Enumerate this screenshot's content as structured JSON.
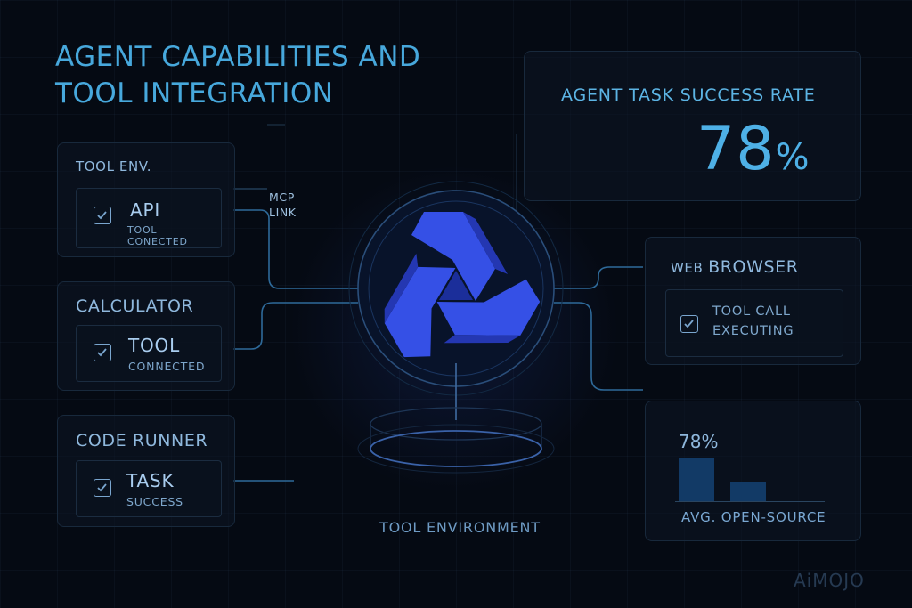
{
  "title_line1": "AGENT CAPABILITIES AND",
  "title_line2": "TOOL INTEGRATION",
  "left_panels": [
    {
      "header": "TOOL ENV.",
      "item_title": "API",
      "item_sub": "TOOL CONECTED"
    },
    {
      "header": "CALCULATOR",
      "item_title": "TOOL",
      "item_sub": "CONNECTED"
    },
    {
      "header": "CODE RUNNER",
      "item_title": "TASK",
      "item_sub": "SUCCESS"
    }
  ],
  "mcp_link": {
    "line1": "MCP",
    "line2": "LINK"
  },
  "success_rate": {
    "label": "AGENT TASK SUCCESS RATE",
    "value": "78",
    "unit": "%"
  },
  "web_browser": {
    "header_small": "WEB",
    "header_big": "BROWSER",
    "line1": "TOOL CALL",
    "line2": "EXECUTING"
  },
  "chart_data": {
    "type": "bar",
    "categories": [
      "",
      ""
    ],
    "values": [
      78,
      36
    ],
    "data_labels": [
      "78%",
      ""
    ],
    "xlabel": "AVG. OPEN-SOURCE",
    "ylim": [
      0,
      100
    ]
  },
  "environment_label": "TOOL ENVIRONMENT",
  "brand": "AiMOJO",
  "icons": [
    "checkbox-checked-icon",
    "agent-logo-icon",
    "platform-cylinder-icon"
  ],
  "colors": {
    "accent": "#47a8dc",
    "logo": "#3a55e8",
    "background": "#050a13"
  }
}
